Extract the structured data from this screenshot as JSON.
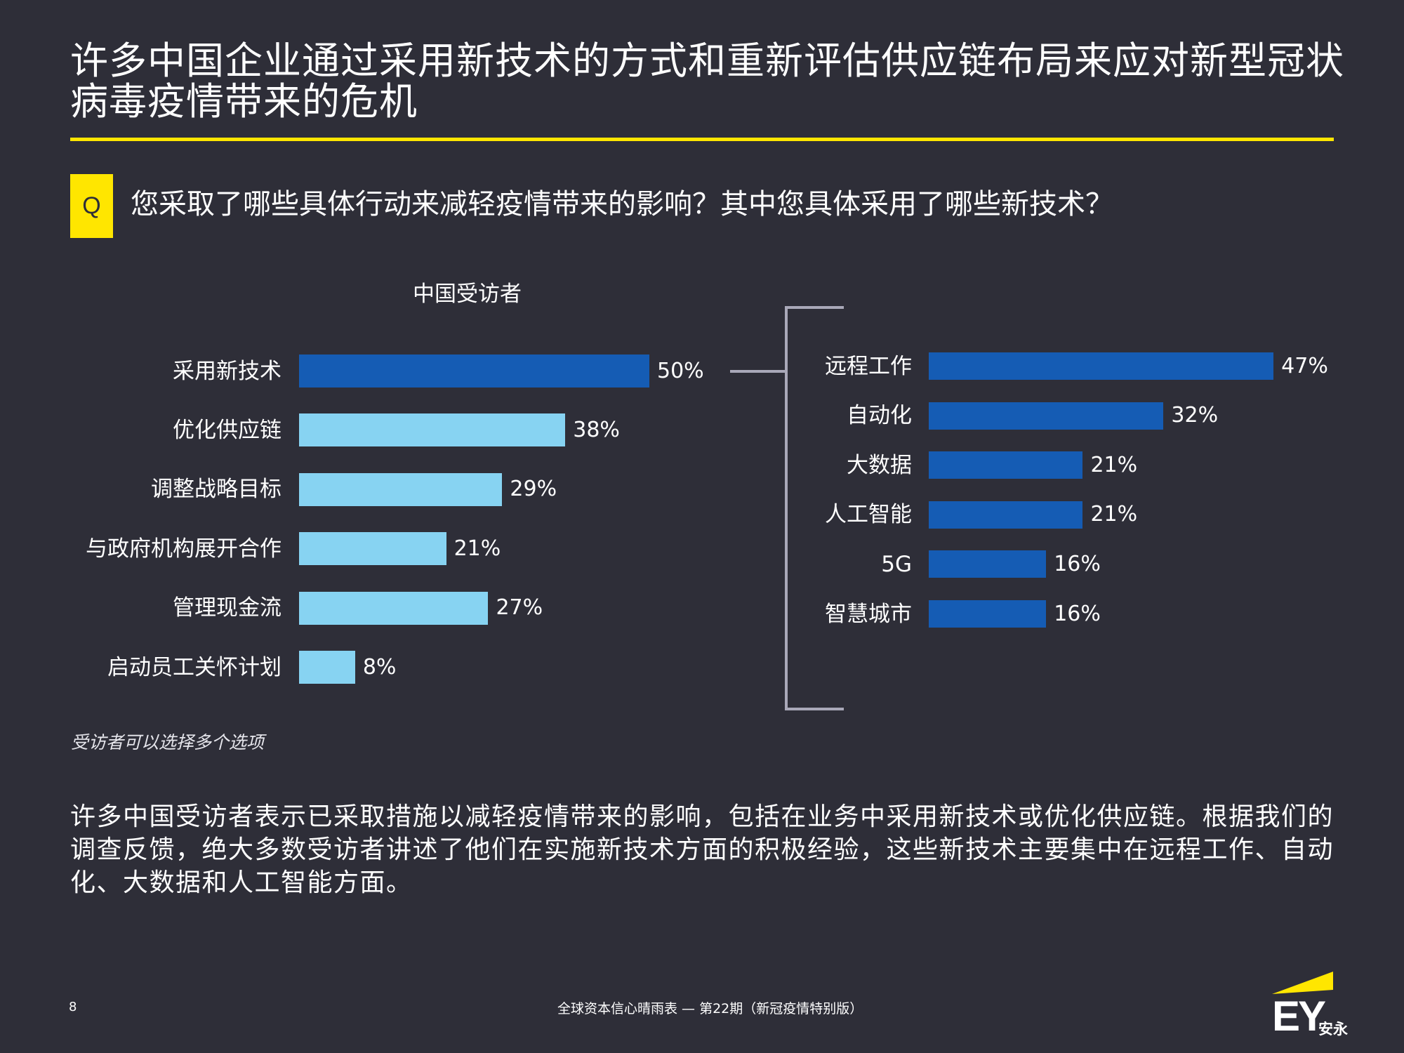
{
  "title": "许多中国企业通过采用新技术的方式和重新评估供应链布局来应对新型冠状病毒疫情带来的危机",
  "question": {
    "badge": "Q",
    "text": "您采取了哪些具体行动来减轻疫情带来的影响？其中您具体采用了哪些新技术？"
  },
  "colors": {
    "background": "#2e2e38",
    "accent_yellow": "#ffe600",
    "bar_dark_blue": "#155cb4",
    "bar_light_blue": "#87d3f2",
    "bracket_gray": "#a9a8b8"
  },
  "chart_data": [
    {
      "type": "bar",
      "orientation": "horizontal",
      "title": "中国受访者",
      "categories": [
        "采用新技术",
        "优化供应链",
        "调整战略目标",
        "与政府机构展开合作",
        "管理现金流",
        "启动员工关怀计划"
      ],
      "values": [
        50,
        38,
        29,
        21,
        27,
        8
      ],
      "value_labels": [
        "50%",
        "38%",
        "29%",
        "21%",
        "27%",
        "8%"
      ],
      "colors": [
        "#155cb4",
        "#87d3f2",
        "#87d3f2",
        "#87d3f2",
        "#87d3f2",
        "#87d3f2"
      ],
      "unit": "%",
      "xlabel": "",
      "ylabel": "",
      "grid": false,
      "legend": "none"
    },
    {
      "type": "bar",
      "orientation": "horizontal",
      "title": "",
      "parent_category": "采用新技术",
      "categories": [
        "远程工作",
        "自动化",
        "大数据",
        "人工智能",
        "5G",
        "智慧城市"
      ],
      "values": [
        47,
        32,
        21,
        21,
        16,
        16
      ],
      "value_labels": [
        "47%",
        "32%",
        "21%",
        "21%",
        "16%",
        "16%"
      ],
      "colors": [
        "#155cb4",
        "#155cb4",
        "#155cb4",
        "#155cb4",
        "#155cb4",
        "#155cb4"
      ],
      "unit": "%",
      "xlabel": "",
      "ylabel": "",
      "grid": false,
      "legend": "none"
    }
  ],
  "footnote": "受访者可以选择多个选项",
  "body_text": "许多中国受访者表示已采取措施以减轻疫情带来的影响，包括在业务中采用新技术或优化供应链。根据我们的调查反馈，绝大多数受访者讲述了他们在实施新技术方面的积极经验，这些新技术主要集中在远程工作、自动化、大数据和人工智能方面。",
  "footer": {
    "page_number": "8",
    "publication": "全球资本信心晴雨表 — 第22期（新冠疫情特别版）",
    "logo_text": "EY",
    "logo_cn": "安永"
  }
}
